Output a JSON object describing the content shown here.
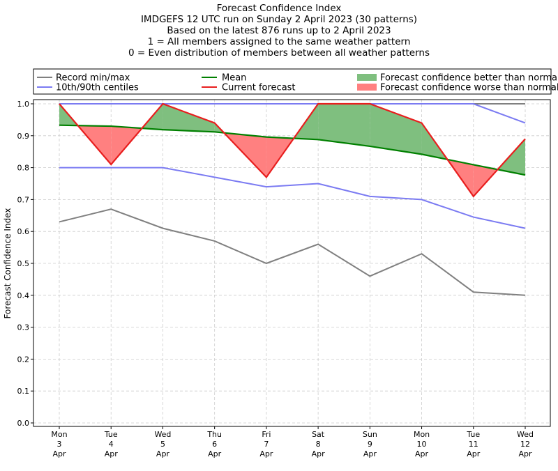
{
  "header": {
    "title_lines": [
      "Forecast Confidence Index",
      "IMDGEFS 12 UTC run on Sunday 2 April 2023 (30 patterns)",
      "Based on the latest 876 runs up to 2 April 2023",
      "1 = All members assigned to the same weather pattern",
      "0 = Even distribution of members between all weather patterns"
    ]
  },
  "legend": {
    "placement": "top, above plot",
    "entries": [
      {
        "label": "Record min/max",
        "kind": "line",
        "color": "#808080"
      },
      {
        "label": "10th/90th centiles",
        "kind": "line",
        "color": "#7b7bf2"
      },
      {
        "label": "Mean",
        "kind": "line",
        "color": "#008000"
      },
      {
        "label": "Current forecast",
        "kind": "line",
        "color": "#e81e1e"
      },
      {
        "label": "Forecast confidence better than normal",
        "kind": "patch",
        "color": "#7fbf7f"
      },
      {
        "label": "Forecast confidence worse than normal",
        "kind": "patch",
        "color": "#ff8080"
      }
    ]
  },
  "chart_data": {
    "type": "line",
    "ylabel": "Forecast Confidence Index",
    "ylim": [
      0,
      1
    ],
    "yticks": [
      "0.0",
      "0.1",
      "0.2",
      "0.3",
      "0.4",
      "0.5",
      "0.6",
      "0.7",
      "0.8",
      "0.9",
      "1.0"
    ],
    "grid": true,
    "categories": [
      [
        "Mon",
        "3",
        "Apr"
      ],
      [
        "Tue",
        "4",
        "Apr"
      ],
      [
        "Wed",
        "5",
        "Apr"
      ],
      [
        "Thu",
        "6",
        "Apr"
      ],
      [
        "Fri",
        "7",
        "Apr"
      ],
      [
        "Sat",
        "8",
        "Apr"
      ],
      [
        "Sun",
        "9",
        "Apr"
      ],
      [
        "Mon",
        "10",
        "Apr"
      ],
      [
        "Tue",
        "11",
        "Apr"
      ],
      [
        "Wed",
        "12",
        "Apr"
      ]
    ],
    "series": [
      {
        "name": "Record min/max",
        "role": "record_max",
        "color": "#808080",
        "values": [
          1.0,
          1.0,
          1.0,
          1.0,
          1.0,
          1.0,
          1.0,
          1.0,
          1.0,
          1.0
        ]
      },
      {
        "name": "Record min/max",
        "role": "record_min",
        "color": "#808080",
        "values": [
          0.63,
          0.67,
          0.61,
          0.57,
          0.5,
          0.56,
          0.46,
          0.53,
          0.41,
          0.4
        ]
      },
      {
        "name": "10th/90th centiles",
        "role": "p90",
        "color": "#7b7bf2",
        "values": [
          1.0,
          1.0,
          1.0,
          1.0,
          1.0,
          1.0,
          1.0,
          1.0,
          1.0,
          0.94
        ]
      },
      {
        "name": "10th/90th centiles",
        "role": "p10",
        "color": "#7b7bf2",
        "values": [
          0.8,
          0.8,
          0.8,
          0.77,
          0.74,
          0.75,
          0.71,
          0.7,
          0.645,
          0.61
        ]
      },
      {
        "name": "Mean",
        "role": "mean",
        "color": "#008000",
        "values": [
          0.933,
          0.93,
          0.919,
          0.912,
          0.896,
          0.888,
          0.867,
          0.842,
          0.809,
          0.777
        ]
      },
      {
        "name": "Current forecast",
        "role": "current",
        "color": "#e81e1e",
        "values": [
          1.0,
          0.81,
          1.0,
          0.94,
          0.77,
          1.0,
          1.0,
          0.94,
          0.71,
          0.89
        ]
      }
    ],
    "fill_better_color": "#7fbf7f",
    "fill_worse_color": "#ff8080"
  }
}
